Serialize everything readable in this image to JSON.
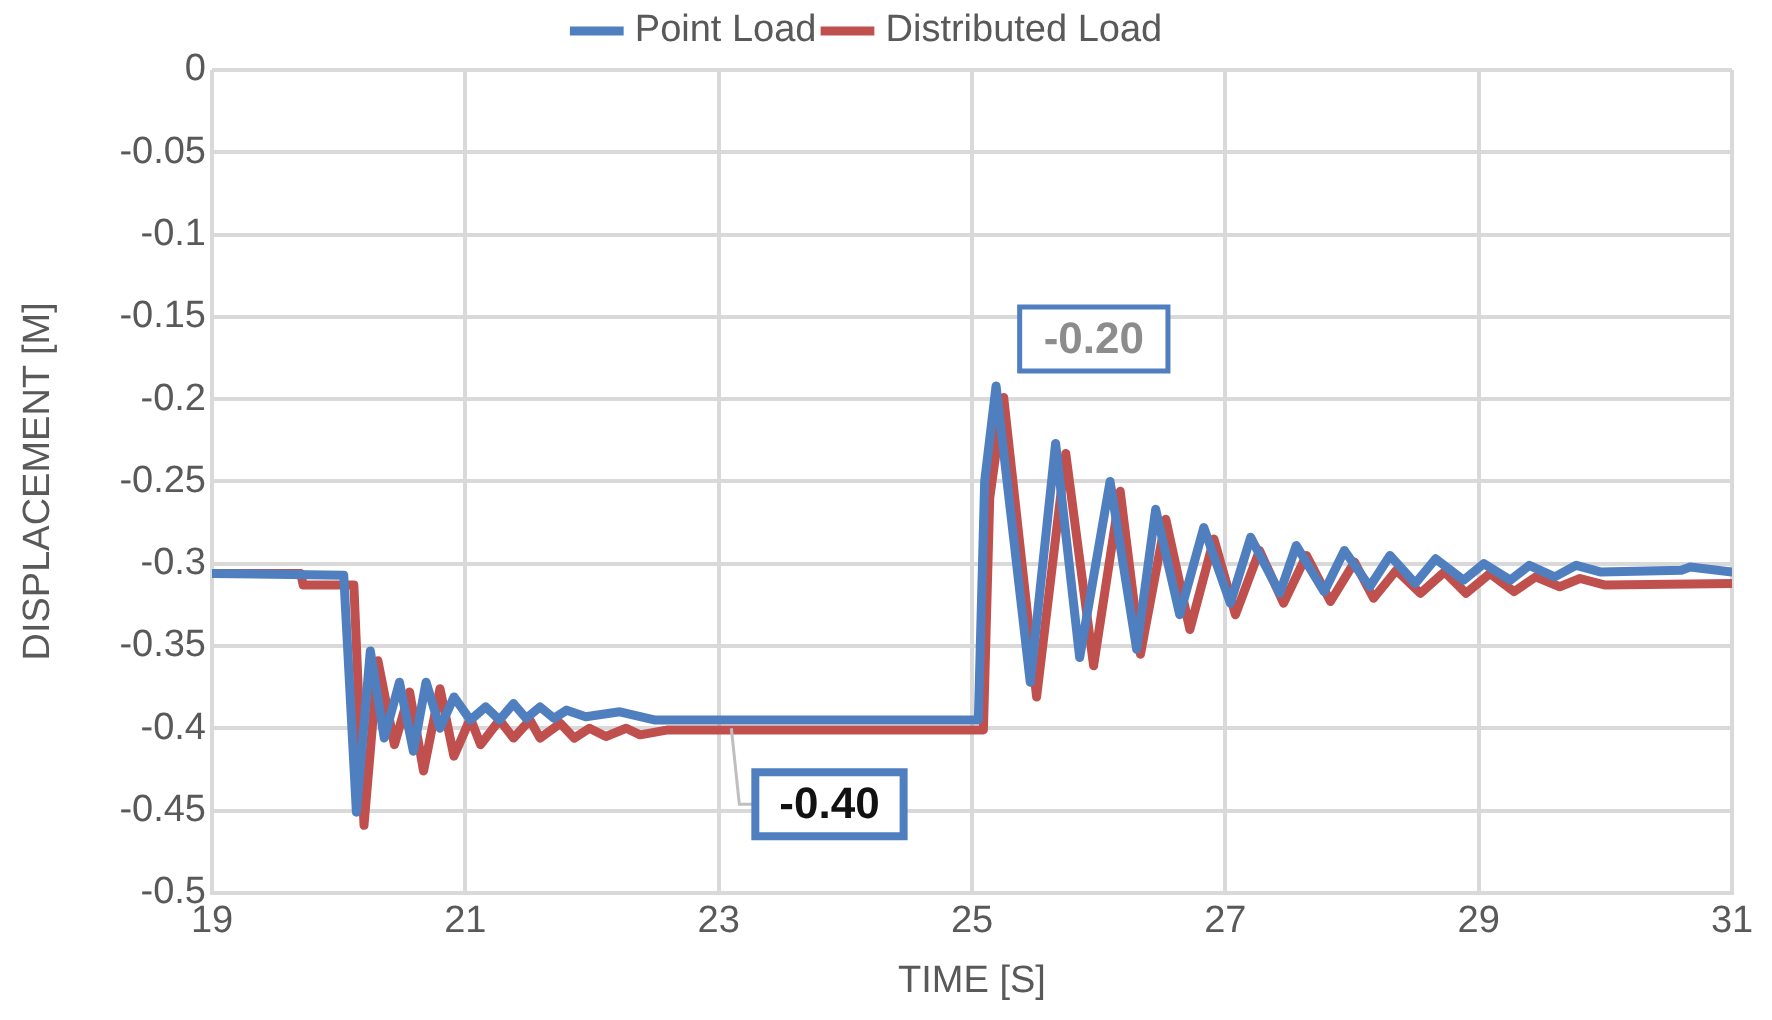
{
  "chart_data": {
    "type": "line",
    "xlabel": "TIME [S]",
    "ylabel": "DISPLACEMENT [M]",
    "xlim": [
      19,
      31
    ],
    "xticks": [
      19,
      21,
      23,
      25,
      27,
      29,
      31
    ],
    "ylim": [
      -0.5,
      0
    ],
    "yticks": [
      0,
      -0.05,
      -0.1,
      -0.15,
      -0.2,
      -0.25,
      -0.3,
      -0.35,
      -0.4,
      -0.45,
      -0.5
    ],
    "grid": true,
    "legend": "top",
    "marker": "none",
    "line_style": "solid",
    "annotations": [
      {
        "text": "-0.20",
        "x": 25.25,
        "y": -0.2
      },
      {
        "text": "-0.40",
        "x": 23.1,
        "y": -0.4
      }
    ],
    "series": [
      {
        "name": "Point Load",
        "color": "#4f7fbf",
        "x": [
          19,
          20.04,
          20.14,
          20.25,
          20.36,
          20.48,
          20.59,
          20.69,
          20.8,
          20.91,
          21.04,
          21.16,
          21.27,
          21.38,
          21.48,
          21.59,
          21.7,
          21.8,
          21.95,
          22.22,
          22.5,
          25.05,
          25.1,
          25.19,
          25.46,
          25.66,
          25.85,
          26.09,
          26.3,
          26.45,
          26.64,
          26.83,
          27.04,
          27.2,
          27.43,
          27.56,
          27.78,
          27.94,
          28.14,
          28.3,
          28.5,
          28.66,
          28.88,
          29.04,
          29.25,
          29.4,
          29.6,
          29.77,
          29.96,
          30.6,
          30.67,
          31
        ],
        "values": [
          -0.306,
          -0.307,
          -0.451,
          -0.353,
          -0.406,
          -0.372,
          -0.414,
          -0.372,
          -0.4,
          -0.381,
          -0.395,
          -0.387,
          -0.395,
          -0.385,
          -0.394,
          -0.387,
          -0.394,
          -0.389,
          -0.393,
          -0.39,
          -0.395,
          -0.395,
          -0.25,
          -0.192,
          -0.372,
          -0.227,
          -0.357,
          -0.25,
          -0.352,
          -0.267,
          -0.331,
          -0.278,
          -0.324,
          -0.284,
          -0.318,
          -0.289,
          -0.317,
          -0.292,
          -0.314,
          -0.295,
          -0.312,
          -0.297,
          -0.31,
          -0.3,
          -0.31,
          -0.301,
          -0.308,
          -0.301,
          -0.305,
          -0.304,
          -0.302,
          -0.305
        ]
      },
      {
        "name": "Distributed Load",
        "color": "#c0504d",
        "x": [
          19,
          19.7,
          19.72,
          20.12,
          20.2,
          20.31,
          20.44,
          20.56,
          20.67,
          20.8,
          20.91,
          21.04,
          21.12,
          21.27,
          21.38,
          21.51,
          21.59,
          21.75,
          21.86,
          21.98,
          22.11,
          22.27,
          22.38,
          22.6,
          25.09,
          25.14,
          25.25,
          25.51,
          25.74,
          25.96,
          26.17,
          26.33,
          26.53,
          26.72,
          26.91,
          27.08,
          27.27,
          27.46,
          27.64,
          27.83,
          28.02,
          28.17,
          28.35,
          28.54,
          28.73,
          28.9,
          29.09,
          29.28,
          29.45,
          29.64,
          29.8,
          30,
          31
        ],
        "values": [
          -0.306,
          -0.306,
          -0.313,
          -0.313,
          -0.459,
          -0.359,
          -0.41,
          -0.378,
          -0.426,
          -0.376,
          -0.417,
          -0.394,
          -0.41,
          -0.395,
          -0.406,
          -0.395,
          -0.406,
          -0.397,
          -0.406,
          -0.4,
          -0.405,
          -0.4,
          -0.404,
          -0.401,
          -0.401,
          -0.26,
          -0.199,
          -0.381,
          -0.233,
          -0.362,
          -0.256,
          -0.355,
          -0.273,
          -0.34,
          -0.285,
          -0.331,
          -0.292,
          -0.324,
          -0.295,
          -0.323,
          -0.299,
          -0.321,
          -0.304,
          -0.318,
          -0.305,
          -0.318,
          -0.306,
          -0.317,
          -0.308,
          -0.314,
          -0.309,
          -0.313,
          -0.312
        ]
      }
    ]
  }
}
